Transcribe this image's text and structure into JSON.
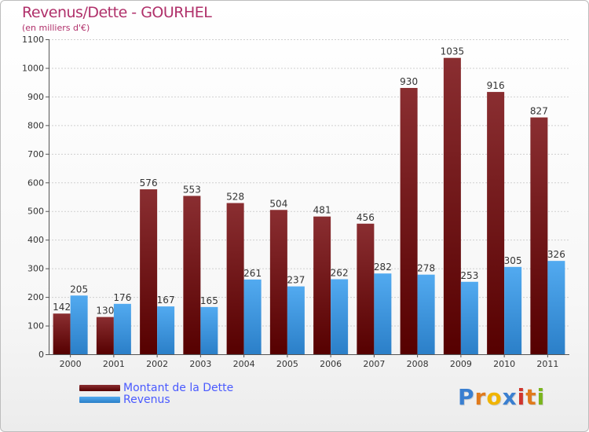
{
  "header": {
    "title": "Revenus/Dette - GOURHEL",
    "subtitle": "(en milliers d'€)"
  },
  "legend": {
    "items": [
      {
        "label": "Montant de la Dette",
        "color": "#6b0f0f"
      },
      {
        "label": "Revenus",
        "color": "#3a94dc"
      }
    ]
  },
  "logo": {
    "letters": [
      "P",
      "r",
      "o",
      "x",
      "i",
      "t",
      "i"
    ]
  },
  "chart_data": {
    "type": "bar",
    "categories": [
      "2000",
      "2001",
      "2002",
      "2003",
      "2004",
      "2005",
      "2006",
      "2007",
      "2008",
      "2009",
      "2010",
      "2011"
    ],
    "series": [
      {
        "name": "Montant de la Dette",
        "color": "#6b0f0f",
        "values": [
          142,
          130,
          576,
          553,
          528,
          504,
          481,
          456,
          930,
          1035,
          916,
          827
        ]
      },
      {
        "name": "Revenus",
        "color": "#3a94dc",
        "values": [
          205,
          176,
          167,
          165,
          261,
          237,
          262,
          282,
          278,
          253,
          305,
          326
        ]
      }
    ],
    "ylim": [
      0,
      1100
    ],
    "yticks": [
      0,
      100,
      200,
      300,
      400,
      500,
      600,
      700,
      800,
      900,
      1000,
      1100
    ],
    "grid": true,
    "data_labels": true,
    "legend_position": "bottom-left"
  }
}
